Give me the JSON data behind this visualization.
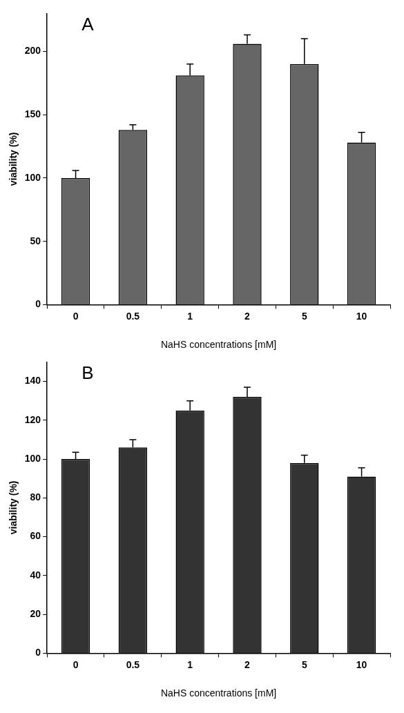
{
  "chart_data": [
    {
      "type": "bar",
      "annotations": [
        "A"
      ],
      "xlabel": "NaHS concentrations [mM]",
      "ylabel": "viability (%)",
      "categories": [
        "0",
        "0.5",
        "1",
        "2",
        "5",
        "10"
      ],
      "values": [
        100,
        138,
        181,
        206,
        190,
        128
      ],
      "errors": [
        [
          100,
          106
        ],
        [
          138,
          142
        ],
        [
          181,
          190
        ],
        [
          206,
          213
        ],
        [
          190,
          210
        ],
        [
          128,
          136
        ]
      ],
      "color": "#666666",
      "ylim": [
        0,
        230
      ],
      "yticks": [
        0,
        50,
        100,
        150,
        200
      ],
      "grid": false,
      "legend": false
    },
    {
      "type": "bar",
      "annotations": [
        "B"
      ],
      "xlabel": "NaHS concentrations [mM]",
      "ylabel": "viability (%)",
      "categories": [
        "0",
        "0.5",
        "1",
        "2",
        "5",
        "10"
      ],
      "values": [
        100,
        106,
        125,
        132,
        98,
        91
      ],
      "errors": [
        [
          100,
          103.5
        ],
        [
          106,
          110
        ],
        [
          125,
          130
        ],
        [
          132,
          137
        ],
        [
          98,
          102
        ],
        [
          91,
          95.5
        ]
      ],
      "color": "#333333",
      "ylim": [
        0,
        150
      ],
      "yticks": [
        0,
        20,
        40,
        60,
        80,
        100,
        120,
        140
      ],
      "grid": false,
      "legend": false
    }
  ]
}
